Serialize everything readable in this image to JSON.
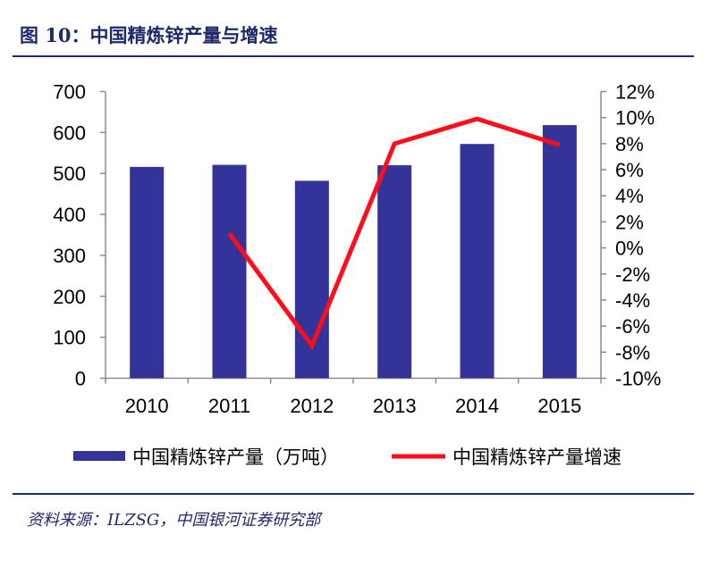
{
  "title": "图 10：中国精炼锌产量与增速",
  "source": "资料来源：ILZSG，中国银河证券研究部",
  "colors": {
    "bar": "#333399",
    "line": "#ff0d1b",
    "title": "#1f2a6b"
  },
  "chart_data": {
    "type": "bar+line",
    "categories": [
      "2010",
      "2011",
      "2012",
      "2013",
      "2014",
      "2015"
    ],
    "series": [
      {
        "name": "中国精炼锌产量（万吨）",
        "type": "bar",
        "axis": "left",
        "values": [
          516,
          521,
          482,
          520,
          572,
          618
        ]
      },
      {
        "name": "中国精炼锌产量增速",
        "type": "line",
        "axis": "right",
        "values": [
          null,
          1.1,
          -7.5,
          8.0,
          9.9,
          7.9
        ]
      }
    ],
    "left_axis": {
      "ylim": [
        0,
        700
      ],
      "ticks": [
        "0",
        "100",
        "200",
        "300",
        "400",
        "500",
        "600",
        "700"
      ]
    },
    "right_axis": {
      "ylim": [
        -10,
        12
      ],
      "ticks": [
        "-10%",
        "-8%",
        "-6%",
        "-4%",
        "-2%",
        "0%",
        "2%",
        "4%",
        "6%",
        "8%",
        "10%",
        "12%"
      ]
    },
    "legend": "bottom",
    "grid": false
  }
}
